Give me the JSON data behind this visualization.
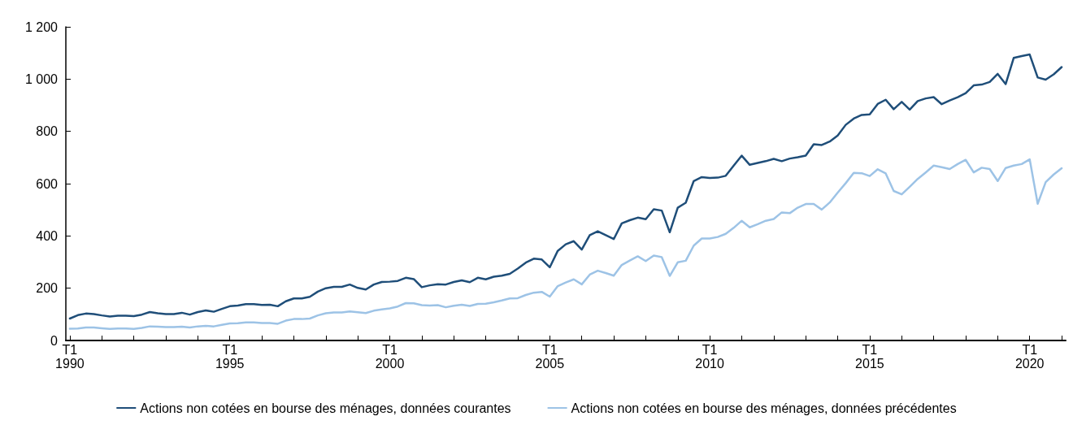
{
  "chart_data": {
    "type": "line",
    "legend": "bottom",
    "grid": false,
    "marker": "none",
    "line_style": "solid",
    "categories": [
      "T1\n1990",
      null,
      null,
      null,
      null,
      null,
      null,
      null,
      null,
      null,
      null,
      null,
      null,
      null,
      null,
      null,
      null,
      null,
      null,
      null,
      "T1\n1995",
      null,
      null,
      null,
      null,
      null,
      null,
      null,
      null,
      null,
      null,
      null,
      null,
      null,
      null,
      null,
      null,
      null,
      null,
      null,
      "T1\n2000",
      null,
      null,
      null,
      null,
      null,
      null,
      null,
      null,
      null,
      null,
      null,
      null,
      null,
      null,
      null,
      null,
      null,
      null,
      null,
      "T1\n2005",
      null,
      null,
      null,
      null,
      null,
      null,
      null,
      null,
      null,
      null,
      null,
      null,
      null,
      null,
      null,
      null,
      null,
      null,
      null,
      "T1\n2010",
      null,
      null,
      null,
      null,
      null,
      null,
      null,
      null,
      null,
      null,
      null,
      null,
      null,
      null,
      null,
      null,
      null,
      null,
      null,
      "T1\n2015",
      null,
      null,
      null,
      null,
      null,
      null,
      null,
      null,
      null,
      null,
      null,
      null,
      null,
      null,
      null,
      null,
      null,
      null,
      null,
      "T1\n2020",
      null,
      null,
      null,
      null
    ],
    "ylim": [
      0,
      1200
    ],
    "yticks": [
      0,
      200,
      400,
      600,
      800,
      {
        "value": 1000,
        "label": "1 000"
      },
      {
        "value": 1200,
        "label": "1 200"
      }
    ],
    "series": [
      {
        "name": "Actions non cotées en bourse des ménages, données courantes",
        "color": "#1f4e79",
        "values": [
          84,
          97,
          103,
          101,
          96,
          92,
          95,
          95,
          93,
          99,
          109,
          104,
          101,
          101,
          106,
          99,
          109,
          115,
          110,
          121,
          131,
          134,
          139,
          139,
          136,
          137,
          131,
          150,
          161,
          161,
          167,
          187,
          200,
          205,
          205,
          214,
          201,
          195,
          214,
          224,
          225,
          228,
          240,
          235,
          204,
          211,
          215,
          214,
          224,
          230,
          223,
          240,
          234,
          244,
          248,
          255,
          275,
          298,
          313,
          310,
          280,
          343,
          368,
          380,
          348,
          403,
          418,
          403,
          388,
          448,
          460,
          470,
          464,
          502,
          497,
          414,
          508,
          527,
          610,
          625,
          622,
          623,
          630,
          669,
          707,
          672,
          679,
          686,
          695,
          686,
          696,
          701,
          707,
          751,
          748,
          761,
          784,
          825,
          849,
          863,
          865,
          905,
          921,
          885,
          913,
          883,
          916,
          926,
          931,
          904,
          918,
          931,
          946,
          976,
          979,
          989,
          1020,
          981,
          1081,
          1088,
          1094,
          1006,
          998,
          1018,
          1046
        ]
      },
      {
        "name": "Actions non cotées en bourse des ménages, données précédentes",
        "color": "#9dc3e6",
        "values": [
          45,
          46,
          50,
          50,
          47,
          44,
          46,
          46,
          44,
          48,
          54,
          53,
          51,
          51,
          53,
          50,
          54,
          56,
          54,
          60,
          65,
          66,
          69,
          69,
          67,
          67,
          64,
          76,
          82,
          82,
          84,
          96,
          104,
          107,
          107,
          111,
          108,
          105,
          114,
          119,
          123,
          130,
          143,
          142,
          135,
          134,
          135,
          127,
          133,
          137,
          132,
          140,
          141,
          146,
          153,
          161,
          162,
          174,
          183,
          186,
          168,
          208,
          222,
          234,
          215,
          252,
          267,
          258,
          248,
          289,
          306,
          322,
          304,
          325,
          319,
          247,
          299,
          305,
          363,
          390,
          390,
          396,
          408,
          431,
          458,
          433,
          445,
          458,
          465,
          490,
          487,
          508,
          522,
          522,
          501,
          528,
          566,
          602,
          641,
          640,
          629,
          655,
          639,
          572,
          559,
          588,
          618,
          643,
          669,
          663,
          656,
          675,
          691,
          643,
          661,
          656,
          610,
          660,
          669,
          675,
          693,
          523,
          606,
          635,
          659
        ]
      }
    ]
  }
}
